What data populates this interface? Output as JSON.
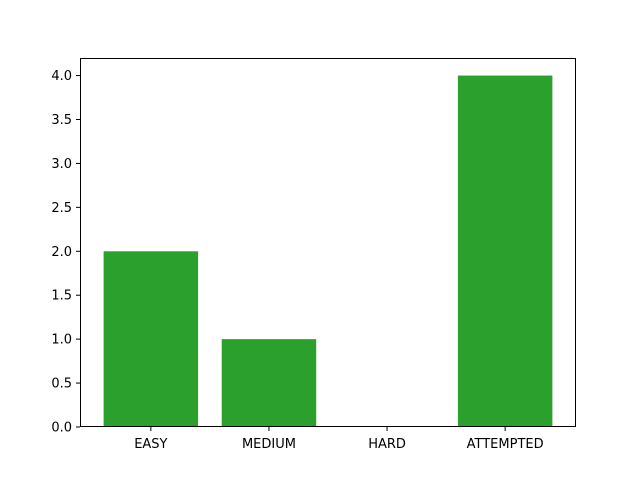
{
  "chart_data": {
    "type": "bar",
    "categories": [
      "EASY",
      "MEDIUM",
      "HARD",
      "ATTEMPTED"
    ],
    "values": [
      2,
      1,
      0,
      4
    ],
    "title": "",
    "xlabel": "",
    "ylabel": "",
    "ylim": [
      0,
      4.2
    ],
    "yticks": [
      "0.0",
      "0.5",
      "1.0",
      "1.5",
      "2.0",
      "2.5",
      "3.0",
      "3.5",
      "4.0"
    ],
    "bar_color": "#2ca02c",
    "grid": false,
    "legend": "none"
  }
}
